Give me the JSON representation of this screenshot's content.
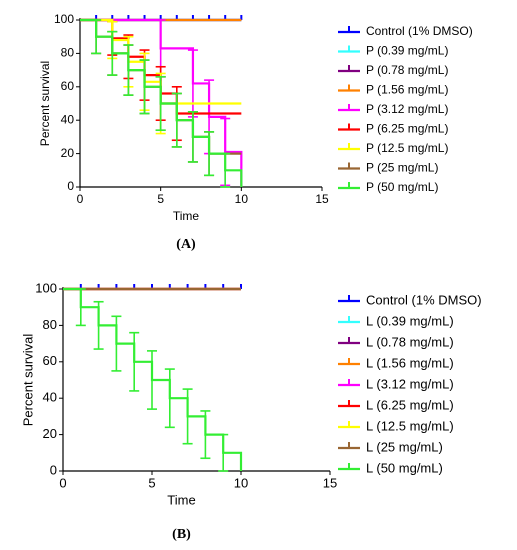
{
  "chart_data": [
    {
      "type": "line",
      "label": "(A)",
      "ylabel": "Percent survival",
      "xlabel": "Time",
      "xlim": [
        0,
        15
      ],
      "xticks": [
        0,
        5,
        10,
        15
      ],
      "ylim": [
        0,
        100
      ],
      "yticks": [
        0,
        20,
        40,
        60,
        80,
        100
      ],
      "series": [
        {
          "name": "Control (1% DMSO)",
          "color": "#0000ff",
          "x": [
            0,
            10
          ],
          "values": [
            100,
            100
          ],
          "censor_x": [
            1,
            2,
            3,
            4,
            5,
            6,
            7,
            8,
            9,
            10
          ]
        },
        {
          "name": "P (0.39 mg/mL)",
          "color": "#33ffff",
          "x": [
            0,
            10
          ],
          "values": [
            100,
            100
          ]
        },
        {
          "name": "P (0.78 mg/mL)",
          "color": "#800080",
          "x": [
            0,
            10
          ],
          "values": [
            100,
            100
          ]
        },
        {
          "name": "P (1.56 mg/mL)",
          "color": "#ff8000",
          "x": [
            0,
            10
          ],
          "values": [
            100,
            100
          ]
        },
        {
          "name": "P (3.12 mg/mL)",
          "color": "#ff00ff",
          "x": [
            0,
            5,
            7,
            8,
            9,
            10
          ],
          "values": [
            100,
            83,
            62,
            42,
            21,
            0
          ],
          "errors": [
            0,
            17,
            20,
            22,
            20,
            0
          ]
        },
        {
          "name": "P (6.25 mg/mL)",
          "color": "#ff0000",
          "x": [
            0,
            2,
            3,
            4,
            5,
            6,
            10
          ],
          "values": [
            100,
            89,
            78,
            67,
            56,
            44,
            44
          ],
          "errors": [
            0,
            10,
            13,
            15,
            16,
            16,
            0
          ]
        },
        {
          "name": "P (12.5 mg/mL)",
          "color": "#ffff00",
          "x": [
            0,
            2,
            3,
            4,
            5,
            10
          ],
          "values": [
            100,
            88,
            75,
            63,
            50,
            50
          ],
          "errors": [
            0,
            11,
            15,
            17,
            18,
            0
          ]
        },
        {
          "name": "P (25 mg/mL)",
          "color": "#996633",
          "x": [
            0,
            1,
            2,
            3,
            4,
            5,
            6,
            7,
            8,
            9,
            10
          ],
          "values": [
            100,
            90,
            80,
            70,
            60,
            50,
            40,
            30,
            20,
            20,
            20
          ],
          "errors": [
            0,
            10,
            13,
            15,
            16,
            16,
            16,
            15,
            13,
            0,
            0
          ]
        },
        {
          "name": "P (50 mg/mL)",
          "color": "#33ee33",
          "x": [
            0,
            1,
            2,
            3,
            4,
            5,
            6,
            7,
            8,
            9,
            10
          ],
          "values": [
            100,
            90,
            80,
            70,
            60,
            50,
            40,
            30,
            20,
            10,
            0
          ],
          "errors": [
            0,
            10,
            13,
            15,
            16,
            16,
            16,
            15,
            13,
            10,
            0
          ]
        }
      ]
    },
    {
      "type": "line",
      "label": "(B)",
      "ylabel": "Percent survival",
      "xlabel": "Time",
      "xlim": [
        0,
        15
      ],
      "xticks": [
        0,
        5,
        10,
        15
      ],
      "ylim": [
        0,
        100
      ],
      "yticks": [
        0,
        20,
        40,
        60,
        80,
        100
      ],
      "series": [
        {
          "name": "Control (1% DMSO)",
          "color": "#0000ff",
          "x": [
            0,
            10
          ],
          "values": [
            100,
            100
          ],
          "censor_x": [
            1,
            2,
            3,
            4,
            5,
            6,
            7,
            8,
            9,
            10
          ]
        },
        {
          "name": "L (0.39 mg/mL)",
          "color": "#33ffff",
          "x": [
            0,
            10
          ],
          "values": [
            100,
            100
          ]
        },
        {
          "name": "L (0.78 mg/mL)",
          "color": "#800080",
          "x": [
            0,
            10
          ],
          "values": [
            100,
            100
          ]
        },
        {
          "name": "L (1.56 mg/mL)",
          "color": "#ff8000",
          "x": [
            0,
            10
          ],
          "values": [
            100,
            100
          ]
        },
        {
          "name": "L (3.12 mg/mL)",
          "color": "#ff00ff",
          "x": [
            0,
            10
          ],
          "values": [
            100,
            100
          ]
        },
        {
          "name": "L (6.25 mg/mL)",
          "color": "#ff0000",
          "x": [
            0,
            10
          ],
          "values": [
            100,
            100
          ]
        },
        {
          "name": "L (12.5 mg/mL)",
          "color": "#ffff00",
          "x": [
            0,
            10
          ],
          "values": [
            100,
            100
          ]
        },
        {
          "name": "L (25 mg/mL)",
          "color": "#996633",
          "x": [
            0,
            10
          ],
          "values": [
            100,
            100
          ]
        },
        {
          "name": "L (50 mg/mL)",
          "color": "#33ee33",
          "x": [
            0,
            1,
            2,
            3,
            4,
            5,
            6,
            7,
            8,
            9,
            10
          ],
          "values": [
            100,
            90,
            80,
            70,
            60,
            50,
            40,
            30,
            20,
            10,
            0
          ],
          "errors": [
            0,
            10,
            13,
            15,
            16,
            16,
            16,
            15,
            13,
            10,
            0
          ]
        }
      ]
    }
  ]
}
